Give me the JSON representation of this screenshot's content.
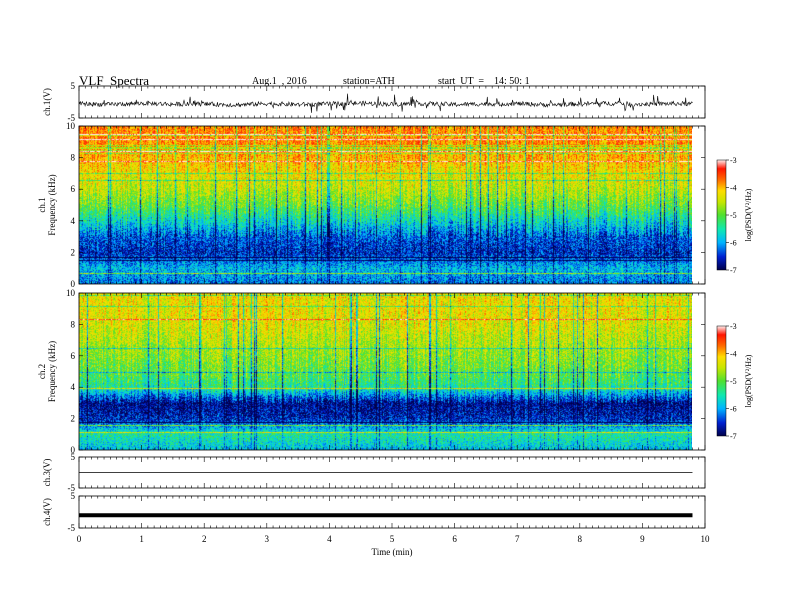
{
  "header": {
    "title": "VLF  Spectra",
    "date": "Aug.1  , 2016",
    "station": "station=ATH",
    "start": "start  UT  =    14: 50: 1"
  },
  "colors": {
    "colormap": [
      "#00004a",
      "#0020d0",
      "#00b4ff",
      "#10e8b0",
      "#50e030",
      "#c8e600",
      "#ffdc00",
      "#ff6a00",
      "#ff1500",
      "#fff0f0"
    ],
    "trace": "#000000"
  },
  "chart_data": [
    {
      "type": "line",
      "panel": "ch1-waveform",
      "ylabel": "ch.1(V)",
      "ylim": [
        -5,
        5
      ],
      "yticks": [
        "5",
        "-5"
      ],
      "x": [
        0,
        0.5,
        1,
        1.5,
        2,
        2.5,
        3,
        3.5,
        4,
        4.5,
        5,
        5.5,
        6,
        6.5,
        7,
        7.5,
        8,
        8.5,
        9,
        9.5,
        9.8
      ],
      "values": [
        -0.5,
        -0.8,
        -0.4,
        -0.7,
        -0.6,
        -0.9,
        -0.5,
        -0.8,
        -0.6,
        -0.4,
        -0.7,
        -0.5,
        -0.8,
        -0.6,
        -0.5,
        -0.9,
        -0.6,
        -0.4,
        -0.7,
        -0.5,
        -0.6
      ]
    },
    {
      "type": "heatmap",
      "panel": "ch1-spectrogram",
      "ylabel": "ch.1\nFrequency  (kHz)",
      "ylim": [
        0,
        10
      ],
      "yticks": [
        "0",
        "2",
        "4",
        "6",
        "8",
        "10"
      ],
      "colorbar": {
        "label": "log(PSD(V²/Hz)",
        "range": [
          -7,
          -3
        ],
        "ticks": [
          "-3",
          "-4",
          "-5",
          "-6",
          "-7"
        ]
      },
      "freq_profile_khz": [
        0,
        1,
        2,
        3,
        4,
        5,
        6,
        7,
        8,
        9,
        10
      ],
      "level_log_psd": [
        -6.3,
        -6.0,
        -6.6,
        -6.4,
        -5.8,
        -5.2,
        -4.8,
        -4.5,
        -4.2,
        -4.0,
        -4.0
      ]
    },
    {
      "type": "heatmap",
      "panel": "ch2-spectrogram",
      "ylabel": "ch.2\nFrequency  (kHz)",
      "ylim": [
        0,
        10
      ],
      "yticks": [
        "0",
        "2",
        "4",
        "6",
        "8",
        "10"
      ],
      "colorbar": {
        "label": "log(PSD(V²/Hz)",
        "range": [
          -7,
          -3
        ],
        "ticks": [
          "-3",
          "-4",
          "-5",
          "-6",
          "-7"
        ]
      },
      "freq_profile_khz": [
        0,
        1,
        2,
        3,
        4,
        5,
        6,
        7,
        8,
        9,
        10
      ],
      "level_log_psd": [
        -6.0,
        -5.6,
        -6.6,
        -6.8,
        -5.6,
        -5.2,
        -5.0,
        -4.8,
        -4.6,
        -4.5,
        -4.5
      ]
    },
    {
      "type": "line",
      "panel": "ch3-waveform",
      "ylabel": "ch.3(V)",
      "ylim": [
        -5,
        5
      ],
      "yticks": [
        "5",
        "-5"
      ],
      "x": [
        0,
        9.8
      ],
      "values": [
        0,
        0
      ]
    },
    {
      "type": "line",
      "panel": "ch4-waveform",
      "ylabel": "ch.4(V)",
      "ylim": [
        -5,
        5
      ],
      "yticks": [
        "5",
        "-5"
      ],
      "x": [
        0,
        9.8
      ],
      "values": [
        -1,
        -1
      ]
    }
  ],
  "xaxis": {
    "label": "Time  (min)",
    "xlim": [
      0,
      10
    ],
    "ticks": [
      "0",
      "1",
      "2",
      "3",
      "4",
      "5",
      "6",
      "7",
      "8",
      "9",
      "10"
    ]
  }
}
